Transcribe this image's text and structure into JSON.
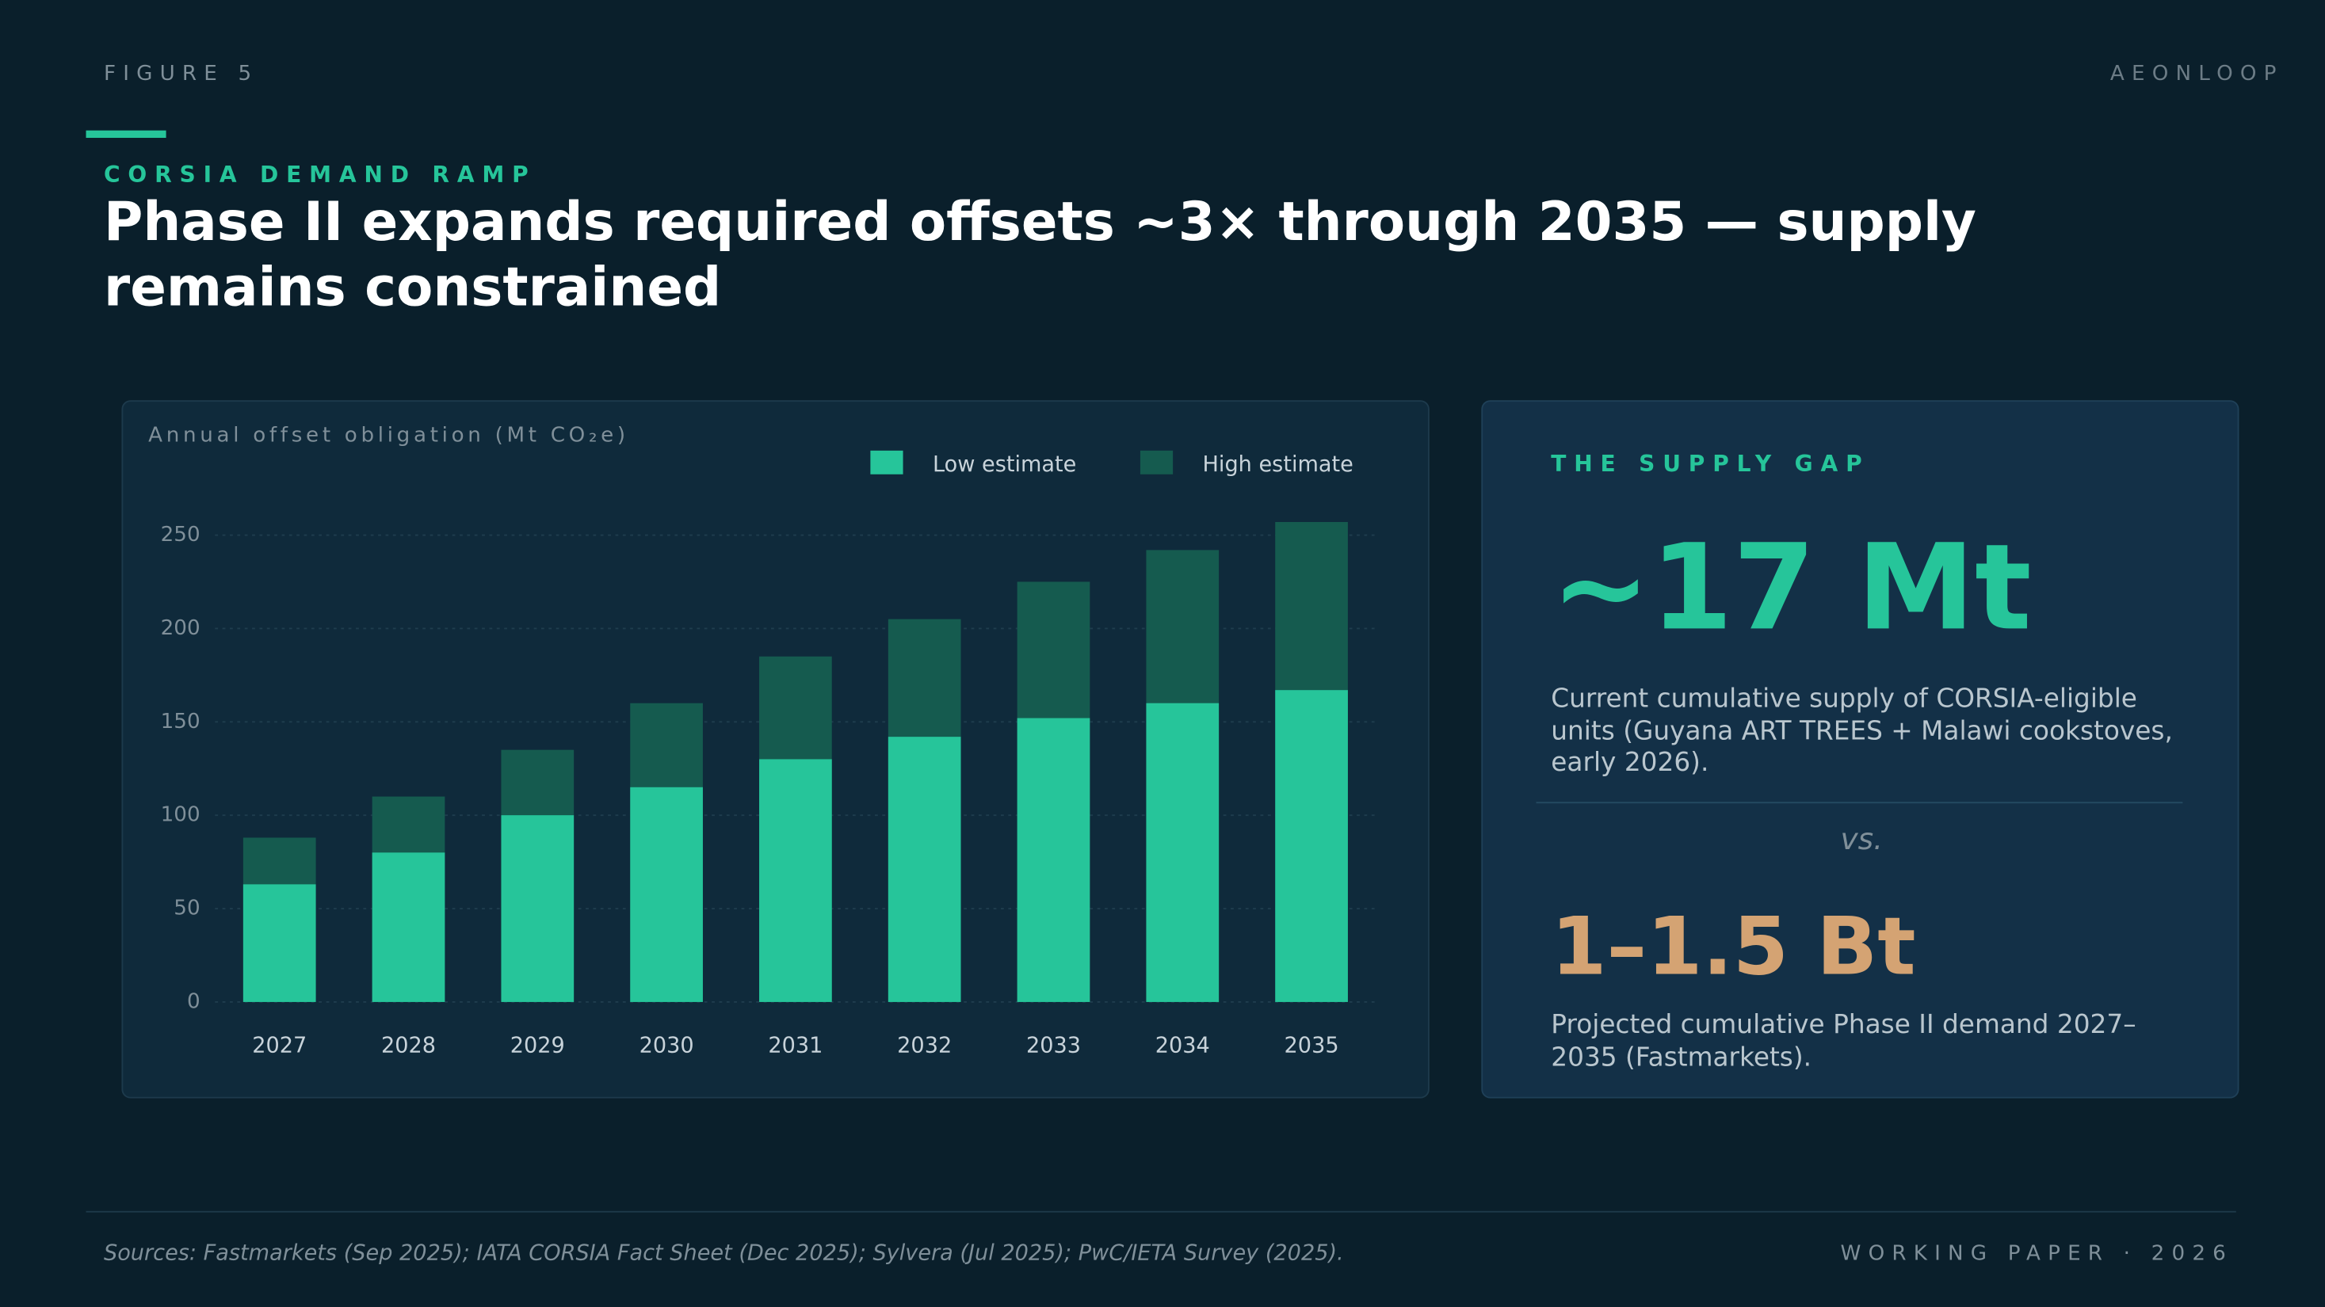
{
  "header": {
    "figure": "FIGURE 5",
    "brand": "AEONLOOP",
    "kicker": "CORSIA DEMAND RAMP",
    "title": "Phase II expands required offsets ~3× through 2035 — supply remains constrained"
  },
  "chart_data": {
    "type": "bar",
    "y_label": "Annual offset obligation (Mt CO₂e)",
    "categories": [
      "2027",
      "2028",
      "2029",
      "2030",
      "2031",
      "2032",
      "2033",
      "2034",
      "2035"
    ],
    "series": [
      {
        "name": "Low estimate",
        "color": "#26c59a",
        "values": [
          63,
          80,
          100,
          115,
          130,
          142,
          152,
          160,
          167
        ]
      },
      {
        "name": "High estimate",
        "color": "#155b4f",
        "values": [
          88,
          110,
          135,
          160,
          185,
          205,
          225,
          242,
          257
        ]
      }
    ],
    "ylim": [
      0,
      270
    ],
    "yticks": [
      0,
      50,
      100,
      150,
      200,
      250
    ],
    "grid": true
  },
  "panel": {
    "label": "THE SUPPLY GAP",
    "supply_value": "~17 Mt",
    "supply_desc": "Current cumulative supply of CORSIA-eligible units (Guyana ART TREES + Malawi cookstoves, early 2026).",
    "vs": "vs.",
    "demand_value": "1–1.5 Bt",
    "demand_desc": "Projected cumulative Phase II demand 2027–2035 (Fastmarkets)."
  },
  "footer": {
    "sources": "Sources: Fastmarkets (Sep 2025); IATA CORSIA Fact Sheet (Dec 2025); Sylvera (Jul 2025); PwC/IETA Survey (2025).",
    "paper": "WORKING PAPER · 2026"
  }
}
